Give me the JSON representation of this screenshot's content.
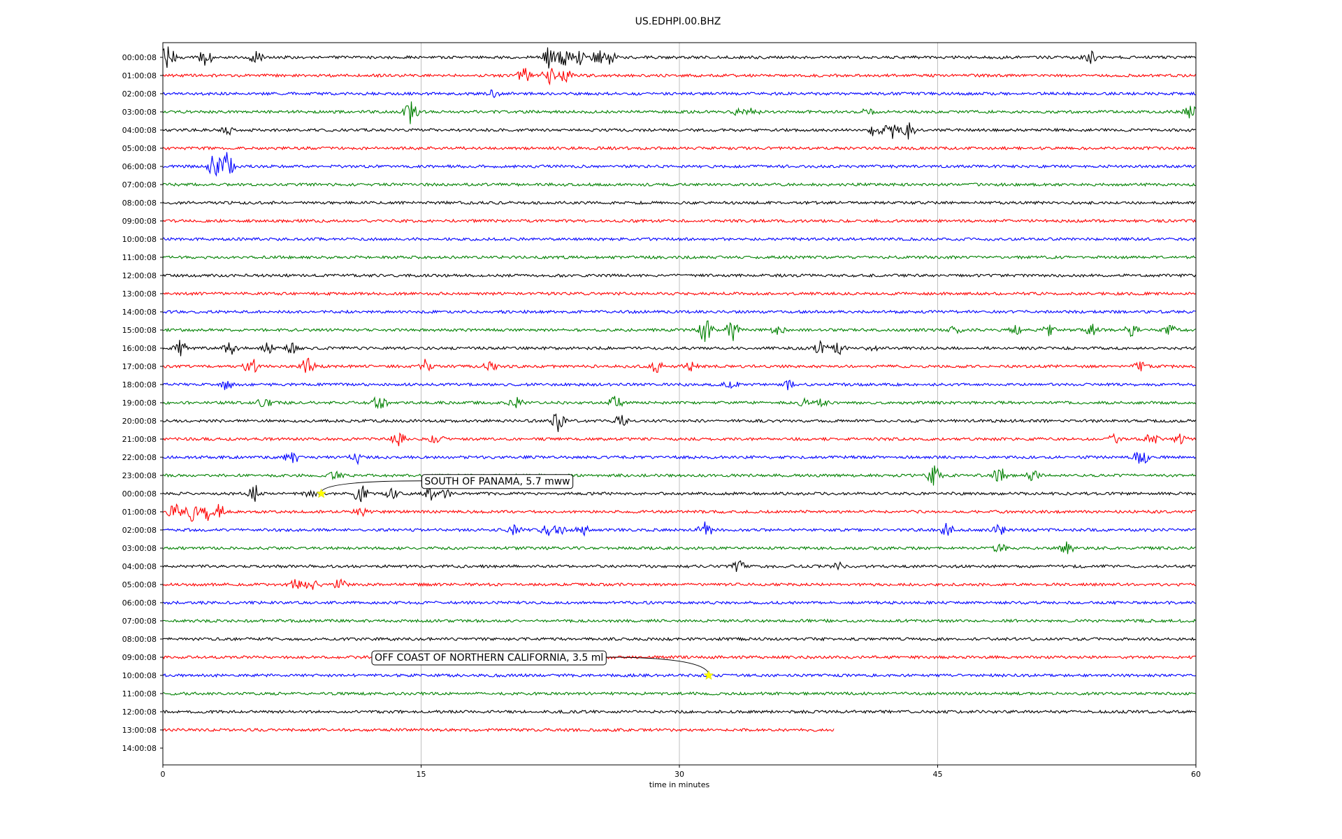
{
  "chart_data": {
    "type": "line",
    "title": "US.EDHPI.00.BHZ",
    "xlabel": "time in minutes",
    "ylabel": "",
    "xlim": [
      0,
      60
    ],
    "xticks": [
      0,
      15,
      30,
      45,
      60
    ],
    "x_tick_labels": [
      "0",
      "15",
      "30",
      "45",
      "60"
    ],
    "grid": "vertical at x ticks",
    "row_colors": [
      "#000000",
      "#ff0000",
      "#0000ff",
      "#008000"
    ],
    "rows": [
      {
        "label": "00:00:08",
        "end": 60,
        "bursts": [
          [
            0.3,
            3.5
          ],
          [
            2.5,
            2.4
          ],
          [
            5.4,
            1.8
          ],
          [
            22.5,
            3.6
          ],
          [
            23.3,
            2.4
          ],
          [
            24.2,
            2.6
          ],
          [
            25.3,
            2.0
          ],
          [
            26.0,
            1.8
          ],
          [
            53.8,
            2.0
          ]
        ]
      },
      {
        "label": "01:00:08",
        "end": 60,
        "bursts": [
          [
            21.0,
            2.5
          ],
          [
            22.4,
            2.6
          ],
          [
            23.4,
            1.8
          ]
        ]
      },
      {
        "label": "02:00:08",
        "end": 60,
        "bursts": [
          [
            19.2,
            0.9
          ]
        ]
      },
      {
        "label": "03:00:08",
        "end": 60,
        "bursts": [
          [
            14.4,
            3.2
          ],
          [
            33.5,
            1.4
          ],
          [
            34.2,
            1.2
          ],
          [
            41.0,
            1.0
          ],
          [
            59.7,
            1.8
          ]
        ]
      },
      {
        "label": "04:00:08",
        "end": 60,
        "bursts": [
          [
            3.8,
            1.2
          ],
          [
            41.4,
            2.2
          ],
          [
            42.3,
            2.4
          ],
          [
            43.3,
            2.6
          ]
        ]
      },
      {
        "label": "05:00:08",
        "end": 60,
        "bursts": []
      },
      {
        "label": "06:00:08",
        "end": 60,
        "bursts": [
          [
            3.0,
            4.2
          ],
          [
            3.7,
            3.8
          ]
        ]
      },
      {
        "label": "07:00:08",
        "end": 60,
        "bursts": []
      },
      {
        "label": "08:00:08",
        "end": 60,
        "bursts": []
      },
      {
        "label": "09:00:08",
        "end": 60,
        "bursts": []
      },
      {
        "label": "10:00:08",
        "end": 60,
        "bursts": []
      },
      {
        "label": "11:00:08",
        "end": 60,
        "bursts": []
      },
      {
        "label": "12:00:08",
        "end": 60,
        "bursts": []
      },
      {
        "label": "13:00:08",
        "end": 60,
        "bursts": []
      },
      {
        "label": "14:00:08",
        "end": 60,
        "bursts": []
      },
      {
        "label": "15:00:08",
        "end": 60,
        "bursts": [
          [
            31.5,
            3.6
          ],
          [
            33.1,
            2.8
          ],
          [
            35.7,
            1.5
          ],
          [
            46.0,
            1.0
          ],
          [
            49.5,
            1.2
          ],
          [
            51.5,
            1.5
          ],
          [
            54.0,
            1.6
          ],
          [
            56.2,
            1.6
          ],
          [
            58.5,
            1.2
          ]
        ]
      },
      {
        "label": "16:00:08",
        "end": 60,
        "bursts": [
          [
            1.0,
            2.0
          ],
          [
            3.9,
            2.2
          ],
          [
            6.0,
            1.6
          ],
          [
            7.5,
            1.6
          ],
          [
            38.2,
            1.8
          ],
          [
            39.3,
            1.5
          ],
          [
            41.3,
            1.1
          ]
        ]
      },
      {
        "label": "17:00:08",
        "end": 60,
        "bursts": [
          [
            5.1,
            2.6
          ],
          [
            8.4,
            2.4
          ],
          [
            15.2,
            2.0
          ],
          [
            19.0,
            1.3
          ],
          [
            28.7,
            1.8
          ],
          [
            30.6,
            1.4
          ],
          [
            56.8,
            1.1
          ]
        ]
      },
      {
        "label": "18:00:08",
        "end": 60,
        "bursts": [
          [
            3.7,
            1.4
          ],
          [
            33.0,
            1.0
          ],
          [
            36.4,
            1.5
          ]
        ]
      },
      {
        "label": "19:00:08",
        "end": 60,
        "bursts": [
          [
            5.9,
            1.5
          ],
          [
            12.6,
            2.2
          ],
          [
            20.5,
            1.4
          ],
          [
            26.3,
            1.8
          ],
          [
            37.3,
            1.2
          ],
          [
            38.2,
            1.2
          ]
        ]
      },
      {
        "label": "20:00:08",
        "end": 60,
        "bursts": [
          [
            23.0,
            3.2
          ],
          [
            26.6,
            1.8
          ]
        ]
      },
      {
        "label": "21:00:08",
        "end": 60,
        "bursts": [
          [
            13.7,
            1.8
          ],
          [
            15.9,
            1.2
          ],
          [
            55.3,
            1.4
          ],
          [
            57.4,
            1.6
          ],
          [
            59.1,
            1.4
          ]
        ]
      },
      {
        "label": "22:00:08",
        "end": 60,
        "bursts": [
          [
            7.5,
            2.2
          ],
          [
            11.3,
            1.5
          ],
          [
            56.8,
            2.4
          ]
        ]
      },
      {
        "label": "23:00:08",
        "end": 60,
        "bursts": [
          [
            10.0,
            1.3
          ],
          [
            44.8,
            3.0
          ],
          [
            48.6,
            2.2
          ],
          [
            50.5,
            1.3
          ]
        ]
      },
      {
        "label": "00:00:08",
        "end": 60,
        "bursts": [
          [
            5.4,
            2.4
          ],
          [
            8.6,
            1.4
          ],
          [
            11.5,
            2.6
          ],
          [
            13.3,
            1.4
          ],
          [
            15.5,
            1.8
          ],
          [
            16.5,
            1.3
          ]
        ]
      },
      {
        "label": "01:00:08",
        "end": 60,
        "bursts": [
          [
            0.7,
            2.0
          ],
          [
            1.7,
            2.4
          ],
          [
            2.6,
            2.8
          ],
          [
            3.3,
            2.2
          ],
          [
            11.5,
            1.1
          ]
        ]
      },
      {
        "label": "02:00:08",
        "end": 60,
        "bursts": [
          [
            20.4,
            1.4
          ],
          [
            22.3,
            1.5
          ],
          [
            23.0,
            1.4
          ],
          [
            24.4,
            1.3
          ],
          [
            31.5,
            2.2
          ],
          [
            45.5,
            1.8
          ],
          [
            48.6,
            1.4
          ]
        ]
      },
      {
        "label": "03:00:08",
        "end": 60,
        "bursts": [
          [
            48.6,
            1.0
          ],
          [
            52.5,
            1.8
          ]
        ]
      },
      {
        "label": "04:00:08",
        "end": 60,
        "bursts": [
          [
            33.4,
            1.7
          ],
          [
            39.2,
            1.1
          ]
        ]
      },
      {
        "label": "05:00:08",
        "end": 60,
        "bursts": [
          [
            7.7,
            1.2
          ],
          [
            8.7,
            2.2
          ],
          [
            10.3,
            1.6
          ]
        ]
      },
      {
        "label": "06:00:08",
        "end": 60,
        "bursts": []
      },
      {
        "label": "07:00:08",
        "end": 60,
        "bursts": []
      },
      {
        "label": "08:00:08",
        "end": 60,
        "bursts": []
      },
      {
        "label": "09:00:08",
        "end": 60,
        "bursts": []
      },
      {
        "label": "10:00:08",
        "end": 60,
        "bursts": []
      },
      {
        "label": "11:00:08",
        "end": 60,
        "bursts": []
      },
      {
        "label": "12:00:08",
        "end": 60,
        "bursts": []
      },
      {
        "label": "13:00:08",
        "end": 39.0,
        "bursts": []
      },
      {
        "label": "14:00:08",
        "end": 0,
        "bursts": []
      }
    ],
    "annotations": [
      {
        "text": "SOUTH OF PANAMA, 5.7 mww",
        "row": 24,
        "x": 9.2,
        "text_row": 23.3,
        "text_x": 15.2,
        "text_color": "#000000"
      },
      {
        "text": "OFF COAST OF NORTHERN CALIFORNIA, 3.5 ml",
        "row": 34,
        "x": 31.7,
        "text_row": 33.0,
        "text_x": 12.3,
        "text_color": "#000000"
      }
    ],
    "event_marker_color": "#ffff00"
  }
}
